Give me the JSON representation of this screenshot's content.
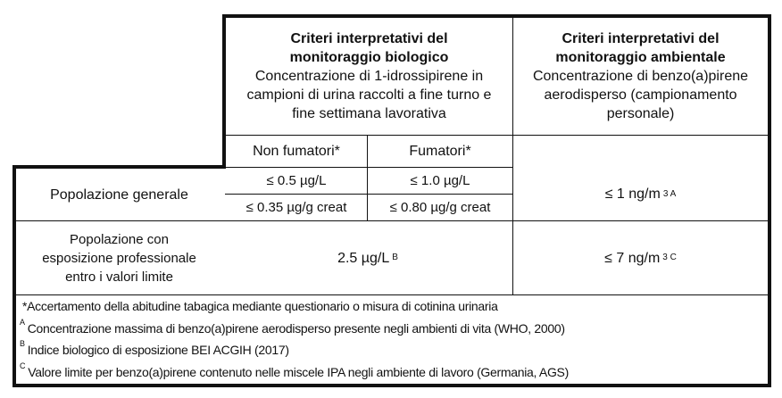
{
  "header": {
    "bio_title": "Criteri interpretativi del monitoraggio biologico",
    "bio_desc": "Concentrazione di 1-idrossipirene in campioni di urina raccolti a fine turno e fine settimana lavorativa",
    "env_title": "Criteri interpretativi del monitoraggio ambientale",
    "env_desc": "Concentrazione di benzo(a)pirene aerodisperso (campionamento personale)",
    "non_smokers": "Non fumatori*",
    "smokers": "Fumatori*"
  },
  "rows": [
    {
      "label": "Popolazione generale",
      "non_smokers": [
        "≤ 0.5 µg/L",
        "≤ 0.35 µg/g creat"
      ],
      "smokers": [
        "≤ 1.0 µg/L",
        "≤ 0.80 µg/g creat"
      ],
      "env": "≤ 1 ng/m",
      "env_sup": "3 A"
    },
    {
      "label": "Popolazione con esposizione professionale entro i valori limite",
      "bio": "2.5 µg/L",
      "bio_sup": "B",
      "env": "≤ 7 ng/m",
      "env_sup": "3 C"
    }
  ],
  "footnotes": [
    {
      "mark": "",
      "text": "*Accertamento della abitudine tabagica mediante questionario o misura di cotinina urinaria"
    },
    {
      "mark": "A",
      "text": "Concentrazione massima di benzo(a)pirene aerodisperso presente negli ambienti di vita (WHO, 2000)"
    },
    {
      "mark": "B",
      "text": "Indice biologico di esposizione BEI ACGIH (2017)"
    },
    {
      "mark": "C",
      "text": "Valore limite per benzo(a)pirene contenuto nelle miscele IPA negli ambiente di lavoro (Germania, AGS)"
    }
  ]
}
